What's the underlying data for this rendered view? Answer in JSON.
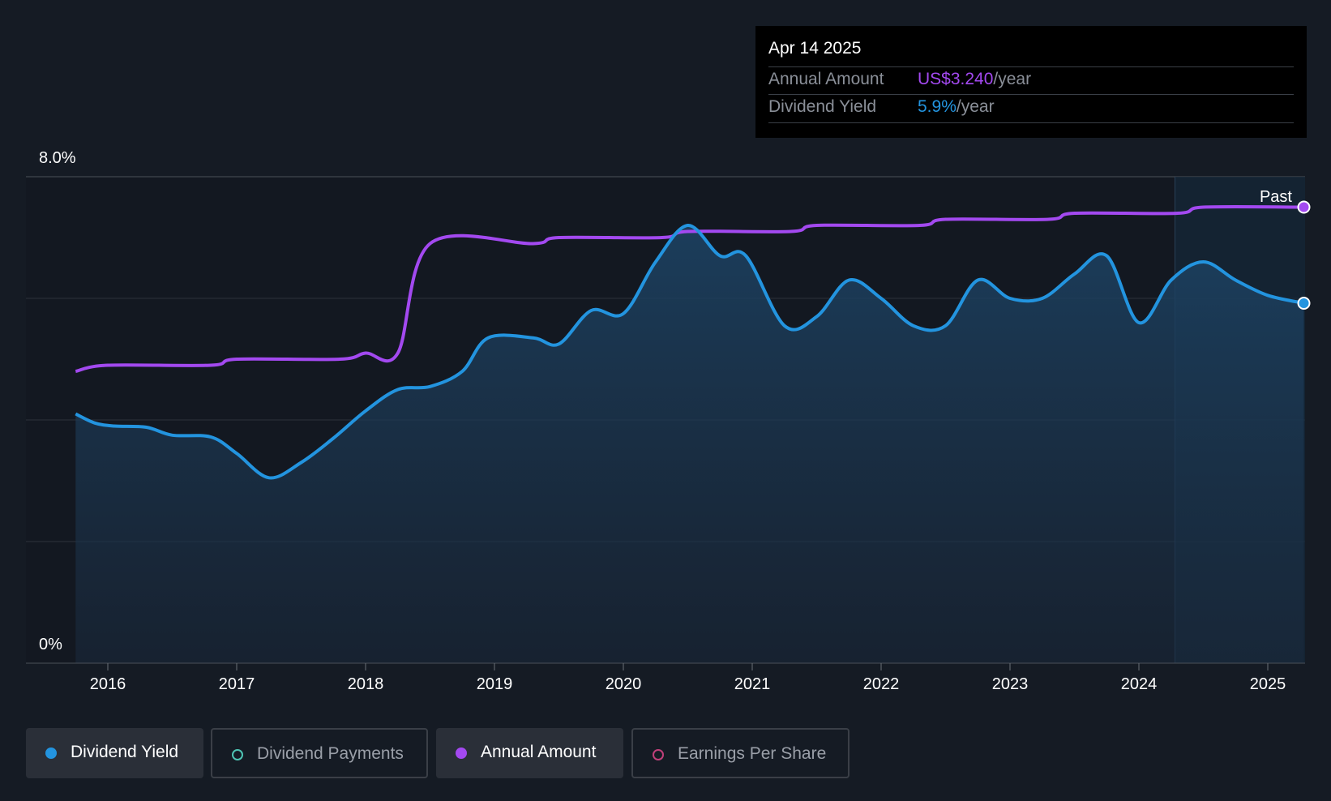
{
  "chart_data": {
    "type": "line",
    "x_ticks": [
      "2016",
      "2017",
      "2018",
      "2019",
      "2020",
      "2021",
      "2022",
      "2023",
      "2024",
      "2025"
    ],
    "y_tick_labels": {
      "top": "8.0%",
      "bottom": "0%"
    },
    "ylim": [
      0,
      8.0
    ],
    "grid": true,
    "forecast_label": "Past",
    "series": [
      {
        "name": "Dividend Yield",
        "color": "#2394df",
        "filled": true,
        "unit": "%",
        "points": [
          [
            2015.75,
            4.1
          ],
          [
            2015.9,
            3.95
          ],
          [
            2016.05,
            3.9
          ],
          [
            2016.3,
            3.88
          ],
          [
            2016.5,
            3.75
          ],
          [
            2016.8,
            3.72
          ],
          [
            2017.0,
            3.45
          ],
          [
            2017.25,
            3.05
          ],
          [
            2017.5,
            3.3
          ],
          [
            2017.75,
            3.7
          ],
          [
            2018.0,
            4.15
          ],
          [
            2018.25,
            4.5
          ],
          [
            2018.5,
            4.55
          ],
          [
            2018.75,
            4.8
          ],
          [
            2018.95,
            5.35
          ],
          [
            2019.3,
            5.35
          ],
          [
            2019.5,
            5.25
          ],
          [
            2019.75,
            5.8
          ],
          [
            2020.0,
            5.75
          ],
          [
            2020.25,
            6.6
          ],
          [
            2020.5,
            7.2
          ],
          [
            2020.75,
            6.7
          ],
          [
            2020.95,
            6.7
          ],
          [
            2021.25,
            5.55
          ],
          [
            2021.5,
            5.7
          ],
          [
            2021.75,
            6.3
          ],
          [
            2022.0,
            6.0
          ],
          [
            2022.25,
            5.55
          ],
          [
            2022.5,
            5.55
          ],
          [
            2022.75,
            6.3
          ],
          [
            2023.0,
            6.0
          ],
          [
            2023.25,
            6.0
          ],
          [
            2023.5,
            6.4
          ],
          [
            2023.75,
            6.7
          ],
          [
            2024.0,
            5.6
          ],
          [
            2024.25,
            6.3
          ],
          [
            2024.5,
            6.6
          ],
          [
            2024.75,
            6.3
          ],
          [
            2025.0,
            6.05
          ],
          [
            2025.28,
            5.92
          ]
        ]
      },
      {
        "name": "Annual Amount",
        "color": "#a349f0",
        "filled": false,
        "unit": "US$/year",
        "points": [
          [
            2015.75,
            4.8
          ],
          [
            2016.0,
            4.9
          ],
          [
            2016.8,
            4.9
          ],
          [
            2017.0,
            5.0
          ],
          [
            2017.8,
            5.0
          ],
          [
            2018.0,
            5.1
          ],
          [
            2018.25,
            5.1
          ],
          [
            2018.5,
            6.9
          ],
          [
            2019.3,
            6.9
          ],
          [
            2019.5,
            7.0
          ],
          [
            2020.3,
            7.0
          ],
          [
            2020.5,
            7.1
          ],
          [
            2021.3,
            7.1
          ],
          [
            2021.5,
            7.2
          ],
          [
            2022.3,
            7.2
          ],
          [
            2022.5,
            7.3
          ],
          [
            2023.3,
            7.3
          ],
          [
            2023.5,
            7.4
          ],
          [
            2024.3,
            7.4
          ],
          [
            2024.5,
            7.5
          ],
          [
            2025.28,
            7.5
          ]
        ]
      }
    ]
  },
  "tooltip": {
    "date": "Apr 14 2025",
    "annual_amount_label": "Annual Amount",
    "annual_amount_value": "US$3.240",
    "annual_amount_unit": "/year",
    "dividend_yield_label": "Dividend Yield",
    "dividend_yield_value": "5.9%",
    "dividend_yield_unit": "/year"
  },
  "legend": [
    {
      "label": "Dividend Yield",
      "active": true,
      "color": "#2394df",
      "marker": "filled"
    },
    {
      "label": "Dividend Payments",
      "active": false,
      "color": "#4ec4b4",
      "marker": "ring"
    },
    {
      "label": "Annual Amount",
      "active": true,
      "color": "#a349f0",
      "marker": "filled"
    },
    {
      "label": "Earnings Per Share",
      "active": false,
      "color": "#c0407a",
      "marker": "ring"
    }
  ]
}
